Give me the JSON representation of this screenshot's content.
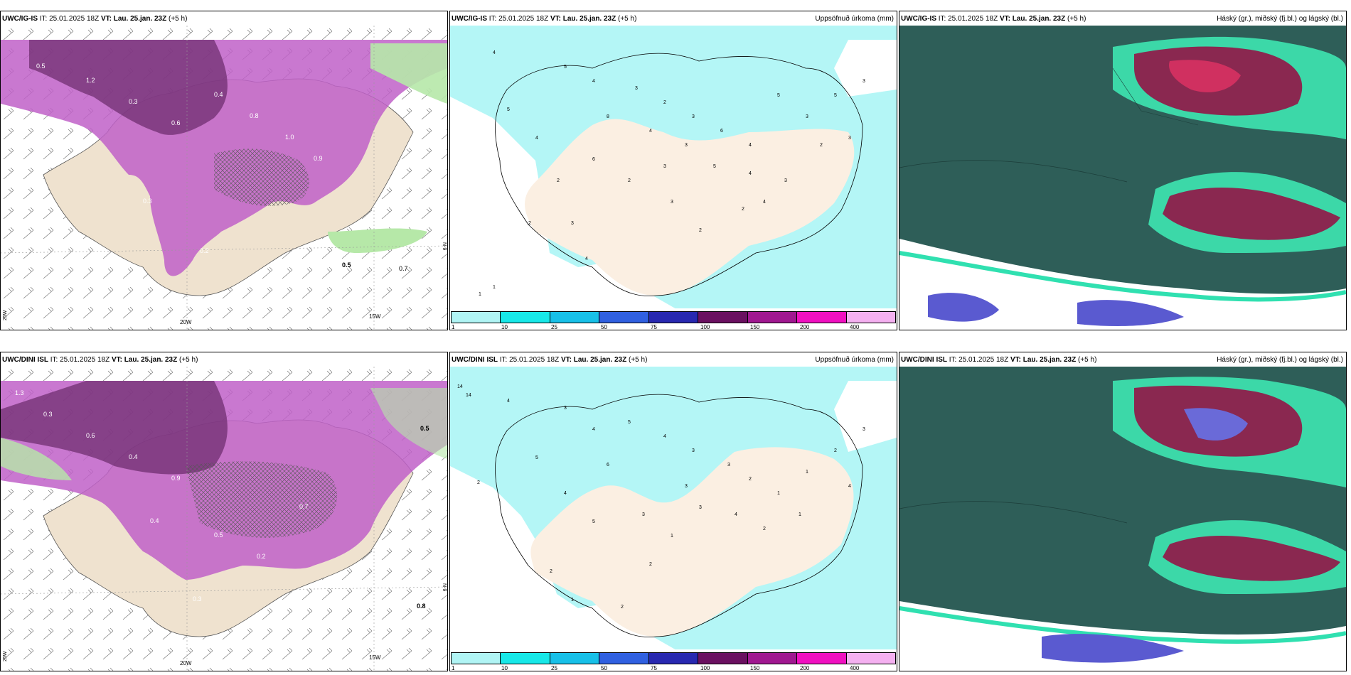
{
  "rows": [
    {
      "model": "UWC/IG-IS",
      "it_label": "IT:",
      "it_value": "25.01.2025 18Z",
      "vt_label": "VT:",
      "vt_value": "Lau. 25.jan. 23Z",
      "lead": "(+5 h)"
    },
    {
      "model": "UWC/DINI ISL",
      "it_label": "IT:",
      "it_value": "25.01.2025 18Z",
      "vt_label": "VT:",
      "vt_value": "Lau. 25.jan. 23Z",
      "lead": "(+5 h)"
    }
  ],
  "precip_title": "Uppsöfnuð úrkoma (mm)",
  "cloud_title": "Háský (gr.), miðský (fj.bl.) og lágský (bl.)",
  "legend": {
    "colors": [
      "#b0f4f4",
      "#18e8e8",
      "#18c0e8",
      "#3060e0",
      "#2828b0",
      "#6a1060",
      "#a01890",
      "#f010c0",
      "#f4b0f0"
    ],
    "ticks": [
      "1",
      "10",
      "25",
      "50",
      "75",
      "100",
      "150",
      "200",
      "400"
    ]
  },
  "axis_labels": {
    "lon_20": "20W",
    "lon_15": "15W",
    "lat_left": "25W",
    "lat_right": "N-9"
  },
  "row1_precip_values": [
    "4",
    "5",
    "4",
    "3",
    "2",
    "3",
    "6",
    "4",
    "5",
    "3",
    "5",
    "3",
    "4",
    "8",
    "4",
    "3",
    "6",
    "2",
    "3",
    "5",
    "4",
    "3",
    "2",
    "1",
    "2",
    "1",
    "3",
    "2",
    "4",
    "2",
    "3",
    "5",
    "3",
    "2",
    "4"
  ],
  "row2_precip_values": [
    "14",
    "14",
    "4",
    "3",
    "4",
    "5",
    "4",
    "3",
    "3",
    "2",
    "1",
    "1",
    "2",
    "3",
    "5",
    "6",
    "4",
    "2",
    "1",
    "2",
    "3",
    "1",
    "3",
    "4",
    "2",
    "5",
    "2",
    "3",
    "4",
    "1",
    "2"
  ],
  "row1_wind_labels": [
    "0.5",
    "1.2",
    "0.3",
    "0.6",
    "0.4",
    "0.8",
    "1.0",
    "0.9",
    "0.2",
    "0.5",
    "0.7",
    "0.3"
  ],
  "row2_wind_labels": [
    "0.5",
    "0.8",
    "0.3",
    "0.6",
    "0.4",
    "0.9",
    "1.3",
    "0.5",
    "0.2",
    "0.7",
    "0.3",
    "0.4"
  ]
}
